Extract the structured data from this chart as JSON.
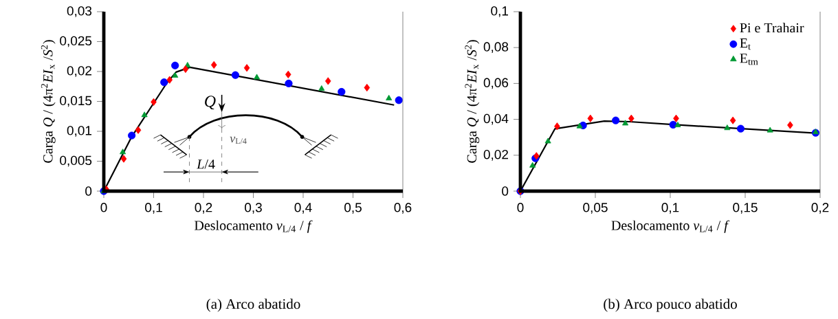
{
  "chart_data": [
    {
      "type": "line",
      "xlabel": "Deslocamento *v*$_{L/4}$ / *f*",
      "ylabel": "Carga *Q* / (4π$^{2}$*EI*$_{x}$ /*S*$^{2}$)",
      "xlim": [
        0,
        0.6
      ],
      "ylim": [
        0,
        0.03
      ],
      "xticks": [
        0,
        {
          "value": 0.1,
          "label": "0,1"
        },
        {
          "value": 0.2,
          "label": "0,2"
        },
        {
          "value": 0.3,
          "label": "0,3"
        },
        {
          "value": 0.4,
          "label": "0,4"
        },
        {
          "value": 0.5,
          "label": "0,5"
        },
        {
          "value": 0.6,
          "label": "0,6"
        }
      ],
      "yticks": [
        0,
        {
          "value": 0.005,
          "label": "0,005"
        },
        {
          "value": 0.01,
          "label": "0,01"
        },
        {
          "value": 0.015,
          "label": "0,015"
        },
        {
          "value": 0.02,
          "label": "0,02"
        },
        {
          "value": 0.025,
          "label": "0,025"
        },
        {
          "value": 0.03,
          "label": "0,03"
        }
      ],
      "grid": false,
      "legend": false,
      "annotations": [
        "(a) Arco abatido",
        "*Q*",
        "*v*$_{L/4}$",
        "*L*/4"
      ],
      "series": [
        {
          "color": "#000000",
          "marker": "none",
          "x": [
            0,
            0.056,
            0.1266,
            0.145,
            0.1727,
            0.5825
          ],
          "values": [
            0,
            0.0091,
            0.0181,
            0.0199,
            0.0207,
            0.0144
          ]
        },
        {
          "type": "scatter",
          "color": "#ff0000",
          "marker": "diamond",
          "x": [
            0.005,
            0.04,
            0.069,
            0.1,
            0.132,
            0.164,
            0.221,
            0.287,
            0.37,
            0.45,
            0.528
          ],
          "values": [
            0.0003,
            0.0054,
            0.0102,
            0.0149,
            0.0186,
            0.0204,
            0.0211,
            0.0206,
            0.0195,
            0.0184,
            0.0173
          ]
        },
        {
          "type": "scatter",
          "color": "#0000ff",
          "marker": "circle",
          "x": [
            0,
            0.056,
            0.121,
            0.143,
            0.264,
            0.371,
            0.477,
            0.592
          ],
          "values": [
            0,
            0.0093,
            0.0182,
            0.021,
            0.0194,
            0.018,
            0.0166,
            0.0152
          ]
        },
        {
          "type": "scatter",
          "color": "#009933",
          "marker": "triangle",
          "x": [
            0,
            0.038,
            0.0815,
            0.143,
            0.168,
            0.307,
            0.437,
            0.572
          ],
          "values": [
            0,
            0.0065,
            0.0127,
            0.0193,
            0.021,
            0.019,
            0.0171,
            0.0155
          ]
        }
      ]
    },
    {
      "type": "line",
      "xlabel": "Deslocamento *v*$_{L/4}$ / *f*",
      "ylabel": "Carga *Q* / (4π$^{2}$*EI*$_{x}$ /*S*$^{2}$)",
      "xlim": [
        0,
        0.2
      ],
      "ylim": [
        0,
        0.1
      ],
      "xticks": [
        0,
        {
          "value": 0.05,
          "label": "0,05"
        },
        {
          "value": 0.1,
          "label": "0,1"
        },
        {
          "value": 0.15,
          "label": "0,15"
        },
        {
          "value": 0.2,
          "label": "0,2"
        }
      ],
      "yticks": [
        0,
        {
          "value": 0.02,
          "label": "0,02"
        },
        {
          "value": 0.04,
          "label": "0,04"
        },
        {
          "value": 0.06,
          "label": "0,06"
        },
        {
          "value": 0.08,
          "label": "0,08"
        },
        {
          "value": 0.1,
          "label": "0,1"
        }
      ],
      "grid": false,
      "legend": "top right",
      "annotations": [
        "(b) Arco pouco abatido"
      ],
      "series": [
        {
          "color": "#000000",
          "marker": "none",
          "x": [
            0,
            0.023,
            0.056,
            0.0728,
            0.1034,
            0.197
          ],
          "values": [
            0,
            0.0347,
            0.039,
            0.0387,
            0.037,
            0.0323
          ]
        },
        {
          "type": "scatter",
          "name": "Pi e Trahair",
          "color": "#ff0000",
          "marker": "diamond",
          "x": [
            0,
            0.0107,
            0.0245,
            0.0467,
            0.074,
            0.1039,
            0.1418,
            0.18
          ],
          "values": [
            0,
            0.0196,
            0.0361,
            0.0405,
            0.0405,
            0.0405,
            0.0394,
            0.0368
          ]
        },
        {
          "type": "scatter",
          "name": "E$_{t}$",
          "color": "#0000ff",
          "marker": "circle",
          "x": [
            0,
            0.01,
            0.0418,
            0.0636,
            0.1019,
            0.147,
            0.197
          ],
          "values": [
            0,
            0.0183,
            0.0366,
            0.0394,
            0.037,
            0.0348,
            0.0325
          ]
        },
        {
          "type": "scatter",
          "name": "E$_{tm}$",
          "color": "#009933",
          "marker": "triangle",
          "x": [
            0.0081,
            0.0184,
            0.0395,
            0.07,
            0.105,
            0.138,
            0.1666,
            0.197
          ],
          "values": [
            0.0142,
            0.0277,
            0.0361,
            0.0377,
            0.0367,
            0.0351,
            0.0338,
            0.0328
          ]
        }
      ]
    }
  ]
}
